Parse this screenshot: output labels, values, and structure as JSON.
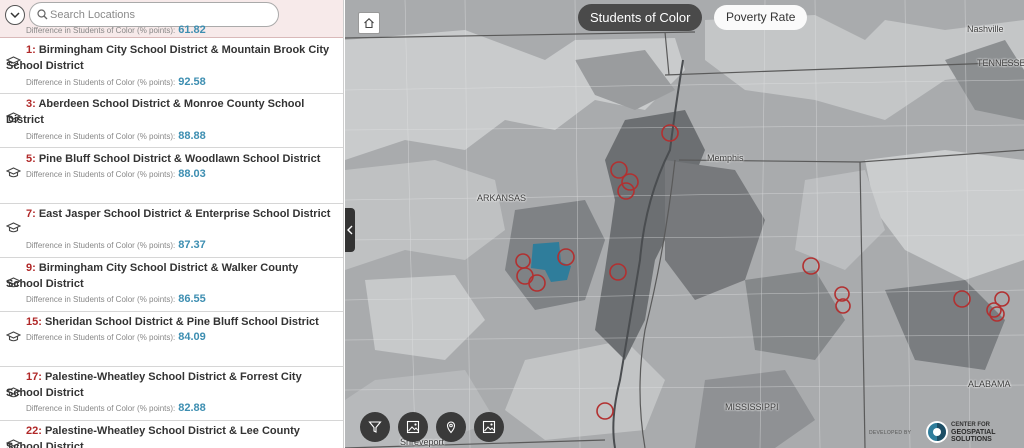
{
  "search": {
    "placeholder": "Search Locations"
  },
  "top_partial": {
    "label": "Difference in Students of Color (% points):",
    "value": "61.82"
  },
  "results": [
    {
      "rank": "1:",
      "name": "Birmingham City School District  & Mountain Brook City School District",
      "label": "Difference in Students of Color (% points):",
      "value": "92.58"
    },
    {
      "rank": "3:",
      "name": "Aberdeen School District  & Monroe County School District",
      "label": "Difference in Students of Color (% points):",
      "value": "88.88"
    },
    {
      "rank": "5:",
      "name": "Pine Bluff School District  & Woodlawn School District",
      "label": "Difference in Students of Color (% points):",
      "value": "88.03"
    },
    {
      "rank": "7:",
      "name": "East Jasper School District  & Enterprise School District",
      "label": "Difference in Students of Color (% points):",
      "value": "87.37"
    },
    {
      "rank": "9:",
      "name": "Birmingham City School District  & Walker County School District",
      "label": "Difference in Students of Color (% points):",
      "value": "86.55"
    },
    {
      "rank": "15:",
      "name": "Sheridan School District  & Pine Bluff School District",
      "label": "Difference in Students of Color (% points):",
      "value": "84.09"
    },
    {
      "rank": "17:",
      "name": "Palestine-Wheatley School District  & Forrest City School District",
      "label": "Difference in Students of Color (% points):",
      "value": "82.88"
    },
    {
      "rank": "22:",
      "name": "Palestine-Wheatley School District  & Lee County School District",
      "label": "",
      "value": ""
    }
  ],
  "map": {
    "toggle_students": "Students of Color",
    "toggle_poverty": "Poverty Rate",
    "labels": {
      "nashville": "Nashville",
      "tennessee": "TENNESSEE",
      "memphis": "Memphis",
      "arkansas": "ARKANSAS",
      "mississippi": "MISSISSIPPI",
      "alabama": "ALABAMA",
      "shreveport": "Shreveport"
    },
    "credit": {
      "prefix": "DEVELOPED BY",
      "org_line1": "CENTER FOR",
      "org_line2": "GEOSPATIAL",
      "org_line3": "SOLUTIONS"
    },
    "colors": {
      "highlight": "#2f7d9b",
      "marker": "#b23030",
      "dark": "#6a6d70",
      "light": "#d2d4d5"
    }
  }
}
